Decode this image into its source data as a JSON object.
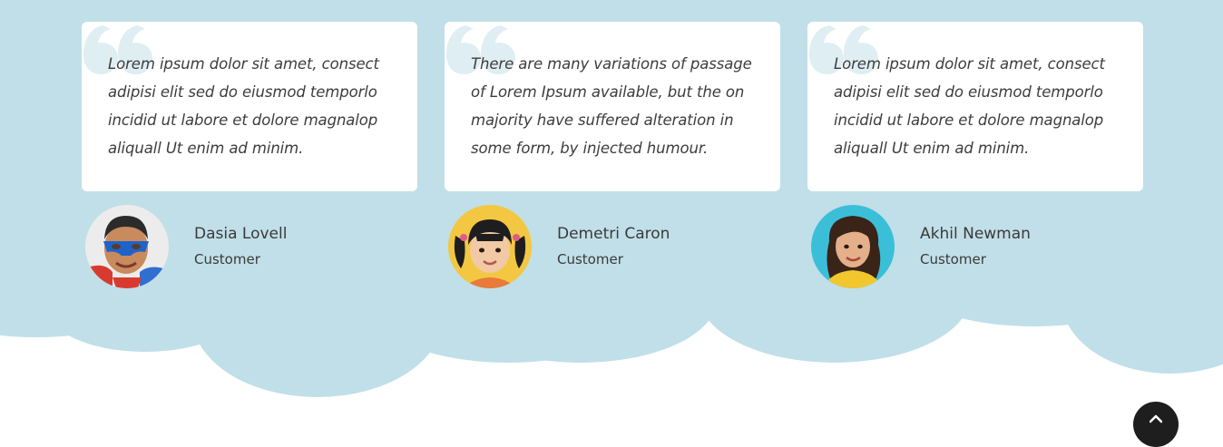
{
  "colors": {
    "cloud": "#c1dfe8",
    "quote_mark": "#dfeef3",
    "text": "#3d3d3d",
    "scroll_button": "#1e1e1e"
  },
  "testimonials": [
    {
      "quote": "Lorem ipsum dolor sit amet, consect adipisi elit sed do eiusmod temporlo incidid ut labore et dolore magnalop aliquall Ut enim ad minim.",
      "name": "Dasia Lovell",
      "role": "Customer",
      "avatar_icon": "boy-superhero-mask"
    },
    {
      "quote": "There are many variations of passage of Lorem Ipsum available, but the on majority have suffered alteration in some form, by injected humour.",
      "name": "Demetri Caron",
      "role": "Customer",
      "avatar_icon": "girl-pigtails"
    },
    {
      "quote": "Lorem ipsum dolor sit amet, consect adipisi elit sed do eiusmod temporlo incidid ut labore et dolore magnalop aliquall Ut enim ad minim.",
      "name": "Akhil Newman",
      "role": "Customer",
      "avatar_icon": "girl-long-hair"
    }
  ],
  "scroll_top": {
    "icon": "chevron-up-icon"
  }
}
